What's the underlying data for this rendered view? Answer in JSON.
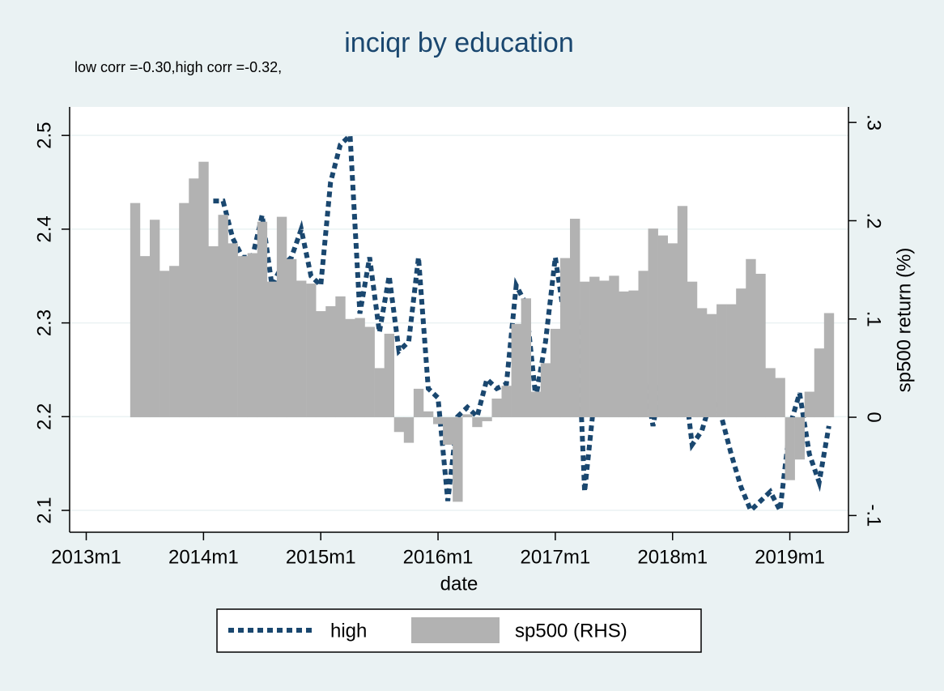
{
  "chart_data": {
    "type": "combo",
    "title": "inciqr by education",
    "subtitle": "low corr =-0.30,high corr =-0.32,",
    "x_label": "date",
    "y2_label": "sp500 return (%)",
    "x": [
      641,
      642,
      643,
      644,
      645,
      646,
      647,
      648,
      649,
      650,
      651,
      652,
      653,
      654,
      655,
      656,
      657,
      658,
      659,
      660,
      661,
      662,
      663,
      664,
      665,
      666,
      667,
      668,
      669,
      670,
      671,
      672,
      673,
      674,
      675,
      676,
      677,
      678,
      679,
      680,
      681,
      682,
      683,
      684,
      685,
      686,
      687,
      688,
      689,
      690,
      691,
      692,
      693,
      694,
      695,
      696,
      697,
      698,
      699,
      700,
      701,
      702,
      703,
      704,
      705,
      706,
      707,
      708,
      709,
      710,
      711,
      712
    ],
    "xlim": [
      634.3,
      714
    ],
    "xticks": [
      {
        "value": 636,
        "label": "2013m1"
      },
      {
        "value": 648,
        "label": "2014m1"
      },
      {
        "value": 660,
        "label": "2015m1"
      },
      {
        "value": 672,
        "label": "2016m1"
      },
      {
        "value": 684,
        "label": "2017m1"
      },
      {
        "value": 696,
        "label": "2018m1"
      },
      {
        "value": 708,
        "label": "2019m1"
      }
    ],
    "ylim": [
      2.0767,
      2.5304
    ],
    "yticks": [
      2.1,
      2.2,
      2.3,
      2.4,
      2.5
    ],
    "y2lim": [
      -0.117,
      0.3158
    ],
    "y2ticks": [
      {
        "value": -0.1,
        "label": "-.1"
      },
      0,
      {
        "value": 0.1,
        "label": ".1"
      },
      {
        "value": 0.2,
        "label": ".2"
      },
      {
        "value": 0.3,
        "label": ".3"
      }
    ],
    "grid": true,
    "series": [
      {
        "name": "high",
        "type": "line",
        "axis": "y",
        "color": "#1a476f",
        "values": [
          null,
          null,
          null,
          null,
          null,
          null,
          null,
          null,
          2.43,
          2.43,
          2.39,
          2.37,
          2.37,
          2.415,
          2.34,
          2.36,
          2.37,
          2.4,
          2.35,
          2.34,
          2.45,
          2.49,
          2.5,
          2.31,
          2.37,
          2.29,
          2.35,
          2.27,
          2.28,
          2.37,
          2.23,
          2.22,
          2.11,
          2.2,
          2.21,
          2.2,
          2.24,
          2.23,
          2.235,
          2.34,
          2.32,
          2.22,
          2.28,
          2.37,
          2.3,
          2.37,
          2.12,
          2.22,
          2.28,
          2.28,
          2.27,
          2.26,
          2.25,
          2.19,
          2.25,
          2.28,
          2.26,
          2.17,
          2.185,
          2.22,
          2.2,
          2.16,
          2.125,
          2.1,
          2.11,
          2.12,
          2.1,
          2.19,
          2.225,
          2.16,
          2.13,
          2.19
        ]
      },
      {
        "name": "sp500 (RHS)",
        "type": "bar",
        "axis": "y2",
        "color": "#b2b2b2",
        "values": [
          0.218,
          0.164,
          0.201,
          0.149,
          0.154,
          0.218,
          0.243,
          0.26,
          0.174,
          0.206,
          0.177,
          0.164,
          0.167,
          0.199,
          0.138,
          0.204,
          0.161,
          0.139,
          0.136,
          0.108,
          0.113,
          0.123,
          0.1,
          0.101,
          0.092,
          0.05,
          0.085,
          -0.015,
          -0.026,
          0.029,
          0.006,
          -0.007,
          -0.028,
          -0.086,
          0.003,
          -0.01,
          -0.004,
          0.019,
          0.032,
          0.095,
          0.121,
          0.026,
          0.055,
          0.09,
          0.162,
          0.202,
          0.138,
          0.143,
          0.139,
          0.144,
          0.128,
          0.129,
          0.149,
          0.192,
          0.185,
          0.177,
          0.215,
          0.138,
          0.111,
          0.105,
          0.115,
          0.115,
          0.131,
          0.161,
          0.146,
          0.05,
          0.04,
          -0.064,
          -0.043,
          0.026,
          0.07,
          0.106
        ]
      }
    ]
  }
}
